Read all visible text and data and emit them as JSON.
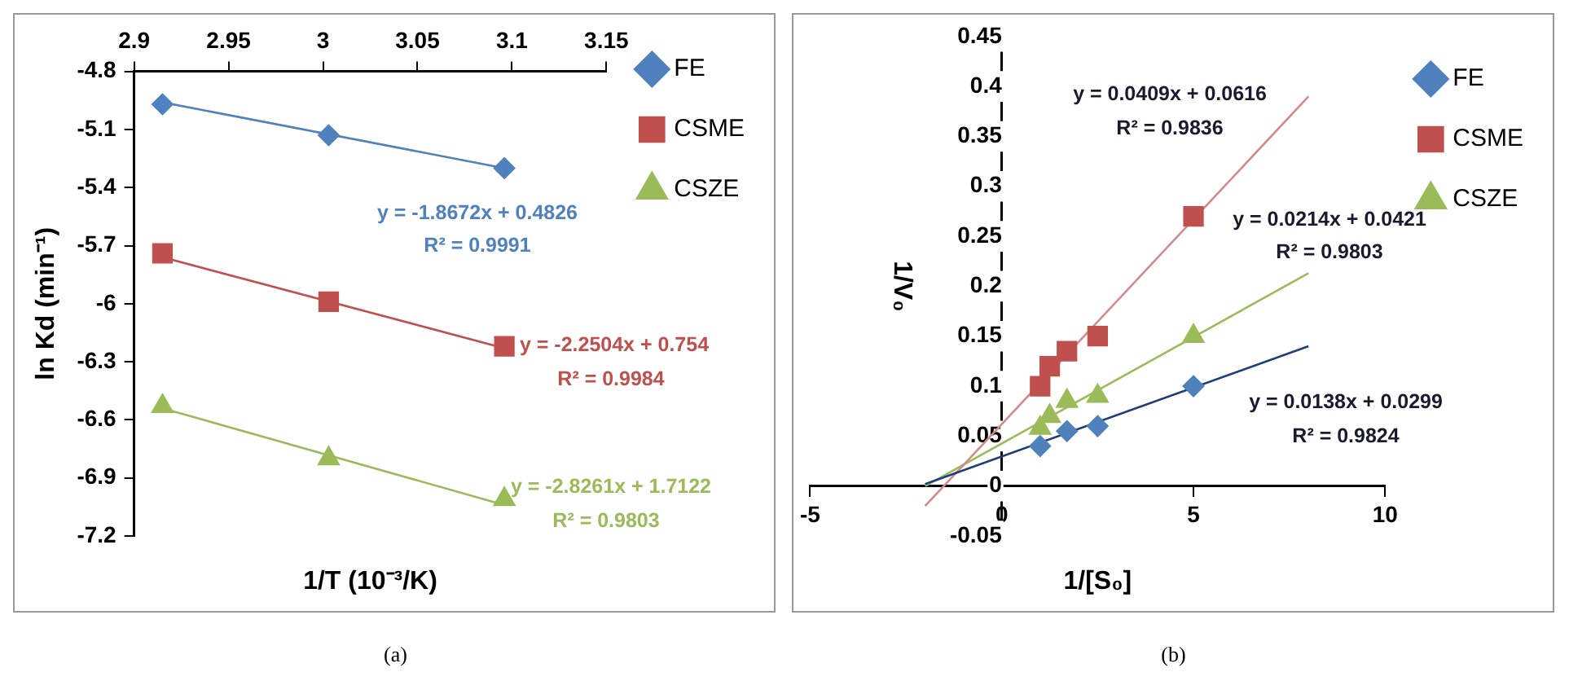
{
  "chart_data": [
    {
      "type": "scatter",
      "xlabel": "1/T (10⁻³/K)",
      "ylabel": "ln Kd (min⁻¹)",
      "xlim": [
        2.9,
        3.15
      ],
      "xticks": [
        2.9,
        2.95,
        3,
        3.05,
        3.1,
        3.15
      ],
      "ylim": [
        -7.2,
        -4.8
      ],
      "yticks": [
        -4.8,
        -5.1,
        -5.4,
        -5.7,
        -6,
        -6.3,
        -6.6,
        -6.9,
        -7.2
      ],
      "grid": false,
      "legend": "right",
      "annotations": [
        "y = -1.8672x + 0.4826",
        "R² = 0.9991",
        "y = -2.2504x + 0.754",
        "R² = 0.9984",
        "y = -2.8261x + 1.7122",
        "R² = 0.9803",
        "(a)"
      ],
      "series": [
        {
          "name": "FE",
          "color": "#4f81bd",
          "marker": "diamond",
          "x": [
            2.915,
            3.003,
            3.096
          ],
          "values": [
            -4.97,
            -5.13,
            -5.3
          ]
        },
        {
          "name": "CSME",
          "color": "#c0504d",
          "marker": "square",
          "x": [
            2.915,
            3.003,
            3.096
          ],
          "values": [
            -5.74,
            -5.99,
            -6.22
          ]
        },
        {
          "name": "CSZE",
          "color": "#9bbb59",
          "marker": "triangle",
          "x": [
            2.915,
            3.003,
            3.096
          ],
          "values": [
            -6.53,
            -6.8,
            -7.01
          ]
        },
        {
          "type": "line",
          "color": "#4f81bd",
          "x": [
            2.915,
            3.096
          ],
          "values": [
            -4.96,
            -5.3
          ]
        },
        {
          "type": "line",
          "color": "#c0504d",
          "x": [
            2.915,
            3.096
          ],
          "values": [
            -5.76,
            -6.23
          ]
        },
        {
          "type": "line",
          "color": "#9bbb59",
          "x": [
            2.915,
            3.096
          ],
          "values": [
            -6.54,
            -7.04
          ]
        }
      ]
    },
    {
      "type": "scatter",
      "xlabel": "1/[S₀]",
      "ylabel": "1/V₀",
      "xlim": [
        -5,
        10
      ],
      "xticks": [
        -5,
        0,
        5,
        10
      ],
      "ylim": [
        -0.05,
        0.45
      ],
      "yticks": [
        -0.05,
        0,
        0.05,
        0.1,
        0.15,
        0.2,
        0.25,
        0.3,
        0.35,
        0.4,
        0.45
      ],
      "grid": false,
      "legend": "right",
      "annotations": [
        "y = 0.0409x + 0.0616",
        "R² = 0.9836",
        "y = 0.0214x + 0.0421",
        "R² = 0.9803",
        "y = 0.0138x + 0.0299",
        "R² = 0.9824",
        "(b)"
      ],
      "series": [
        {
          "name": "FE",
          "color": "#4f81bd",
          "marker": "diamond",
          "x": [
            1,
            1.7,
            2.5,
            5
          ],
          "values": [
            0.04,
            0.055,
            0.06,
            0.1
          ]
        },
        {
          "name": "CSME",
          "color": "#c0504d",
          "marker": "square",
          "x": [
            1,
            1.25,
            1.7,
            2.5,
            5
          ],
          "values": [
            0.1,
            0.12,
            0.135,
            0.15,
            0.27
          ]
        },
        {
          "name": "CSZE",
          "color": "#9bbb59",
          "marker": "triangle",
          "x": [
            1,
            1.25,
            1.7,
            2.5,
            5
          ],
          "values": [
            0.058,
            0.07,
            0.085,
            0.09,
            0.15
          ]
        },
        {
          "type": "line",
          "color": "#1f3d7a",
          "x": [
            -2,
            8
          ],
          "values": [
            0.002,
            0.14
          ]
        },
        {
          "type": "line",
          "color": "#d48a8c",
          "x": [
            -2,
            8
          ],
          "values": [
            -0.02,
            0.39
          ]
        },
        {
          "type": "line",
          "color": "#9bbb59",
          "x": [
            -2,
            8
          ],
          "values": [
            0,
            0.213
          ]
        }
      ]
    }
  ]
}
